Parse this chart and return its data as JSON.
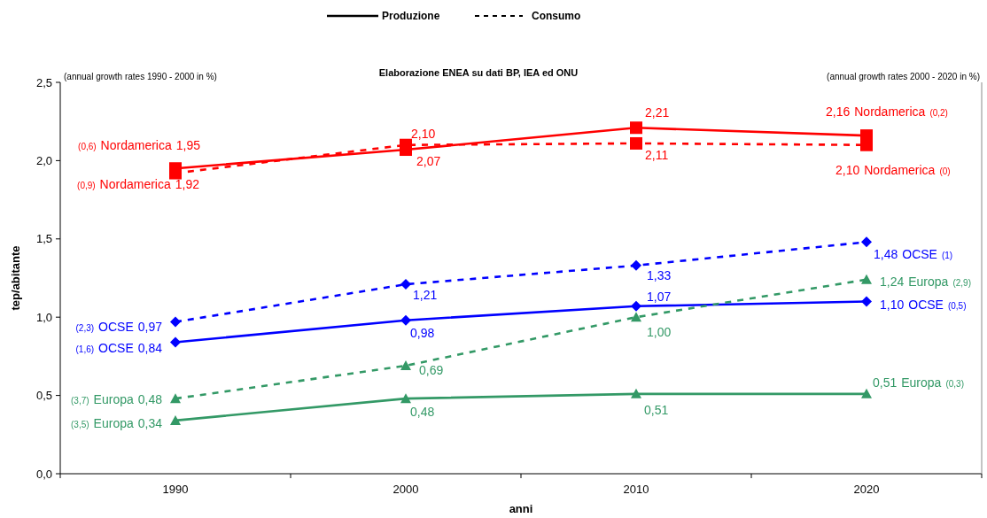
{
  "chart_data": {
    "type": "line",
    "xlabel": "anni",
    "ylabel": "tep/abitante",
    "categories": [
      "1990",
      "2000",
      "2010",
      "2020"
    ],
    "ylim": [
      0,
      2.5
    ],
    "yticks": [
      {
        "value": 0,
        "label": "0,0"
      },
      {
        "value": 0.5,
        "label": "0,5"
      },
      {
        "value": 1,
        "label": "1,0"
      },
      {
        "value": 1.5,
        "label": "1,5"
      },
      {
        "value": 2,
        "label": "2,0"
      },
      {
        "value": 2.5,
        "label": "2,5"
      }
    ],
    "grid": false,
    "series": [
      {
        "name": "Nordamerica",
        "color": "#ff0000",
        "values": [
          1.95,
          2.07,
          2.21,
          2.16
        ],
        "value_labels": [
          "1,95",
          "2,07",
          "2,21",
          "2,16"
        ],
        "marker": "square",
        "line_style": "solid"
      },
      {
        "name": "Nordamerica",
        "color": "#ff0000",
        "values": [
          1.92,
          2.1,
          2.11,
          2.1
        ],
        "value_labels": [
          "1,92",
          "2,10",
          "2,11",
          "2,10"
        ],
        "marker": "square",
        "line_style": "dashed"
      },
      {
        "name": "OCSE",
        "color": "#0000ff",
        "values": [
          0.97,
          1.21,
          1.33,
          1.48
        ],
        "value_labels": [
          "0,97",
          "1,21",
          "1,33",
          "1,48"
        ],
        "marker": "diamond",
        "line_style": "dashed"
      },
      {
        "name": "OCSE",
        "color": "#0000ff",
        "values": [
          0.84,
          0.98,
          1.07,
          1.1
        ],
        "value_labels": [
          "0,84",
          "0,98",
          "1,07",
          "1,10"
        ],
        "marker": "diamond",
        "line_style": "solid"
      },
      {
        "name": "Europa",
        "color": "#339966",
        "values": [
          0.48,
          0.69,
          1.0,
          1.24
        ],
        "value_labels": [
          "0,48",
          "0,69",
          "1,00",
          "1,24"
        ],
        "marker": "triangle",
        "line_style": "dashed"
      },
      {
        "name": "Europa",
        "color": "#339966",
        "values": [
          0.34,
          0.48,
          0.51,
          0.51
        ],
        "value_labels": [
          "0,34",
          "0,48",
          "0,51",
          "0,51"
        ],
        "marker": "triangle",
        "line_style": "solid"
      }
    ],
    "annotations": [
      "(annual growth rates 1990 - 2000  in %)",
      "Elaborazione ENEA su dati BP, IEA ed ONU",
      "(annual growth rates 2000 - 2020  in %)",
      "Produzione",
      "Consumo",
      "(0,6)",
      "(0,9)",
      "(2,3)",
      "(1,6)",
      "(3,7)",
      "(3,5)",
      "(0,2)",
      "(0)",
      "(1)",
      "(0,5)",
      "(2,9)",
      "(0,3)"
    ]
  }
}
